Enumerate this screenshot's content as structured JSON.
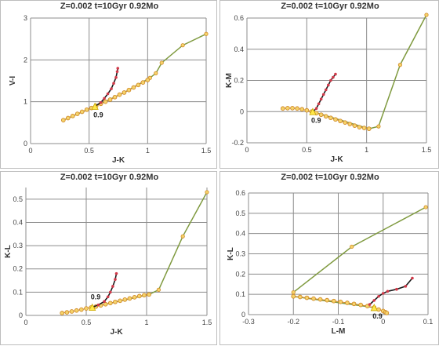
{
  "colors": {
    "grid": "#8c8c8c",
    "axis": "#8c8c8c",
    "green_line": "#7f9a3f",
    "marker_fill": "#f5d36a",
    "marker_stroke": "#d08a2a",
    "red_marker": "#d23a4a",
    "dark_line": "#1a1a1a",
    "triangle": "#ffe84a"
  },
  "chart_data": [
    {
      "type": "line",
      "title": "Z=0.002  t=10Gyr 0.92Mo",
      "xlabel": "J-K",
      "ylabel": "V-I",
      "xlim": [
        0,
        1.5
      ],
      "ylim": [
        0,
        3
      ],
      "xticks": [
        "0",
        "0.5",
        "1",
        "1.5"
      ],
      "yticks": [
        "0",
        "1",
        "2",
        "3"
      ],
      "grid": true,
      "annotation": "0.9",
      "annotation_point": [
        0.55,
        0.89
      ],
      "series": [
        {
          "style": "green-line",
          "x": [
            0.28,
            0.52,
            0.8,
            1.02,
            1.07,
            1.12,
            1.3,
            1.5
          ],
          "y": [
            0.56,
            0.85,
            1.22,
            1.57,
            1.68,
            1.93,
            2.35,
            2.62
          ]
        },
        {
          "style": "orange-circles",
          "x": [
            0.28,
            0.32,
            0.36,
            0.4,
            0.44,
            0.48,
            0.52,
            0.56,
            0.6,
            0.64,
            0.68,
            0.72,
            0.76,
            0.8,
            0.84,
            0.88,
            0.92,
            0.96,
            1.0
          ],
          "y": [
            0.56,
            0.61,
            0.66,
            0.71,
            0.76,
            0.81,
            0.85,
            0.9,
            0.95,
            1.0,
            1.05,
            1.11,
            1.17,
            1.22,
            1.28,
            1.34,
            1.4,
            1.46,
            1.52
          ]
        },
        {
          "style": "red-dark-line",
          "x": [
            0.55,
            0.6,
            0.63,
            0.66,
            0.69,
            0.71,
            0.73,
            0.74,
            0.745
          ],
          "y": [
            0.89,
            0.98,
            1.08,
            1.19,
            1.31,
            1.44,
            1.58,
            1.72,
            1.8
          ]
        }
      ]
    },
    {
      "type": "line",
      "title": "Z=0.002  t=10Gyr 0.92Mo",
      "xlabel": "J-K",
      "ylabel": "K-M",
      "xlim": [
        0,
        1.5
      ],
      "ylim": [
        -0.2,
        0.6
      ],
      "xticks": [
        "0",
        "0.5",
        "1",
        "1.5"
      ],
      "yticks": [
        "-0.2",
        "0",
        "0.2",
        "0.4",
        "0.6"
      ],
      "grid": true,
      "annotation": "0.9",
      "annotation_point": [
        0.55,
        0.0
      ],
      "series": [
        {
          "style": "green-line",
          "x": [
            0.55,
            1.02,
            1.1,
            1.28,
            1.5
          ],
          "y": [
            0.0,
            -0.11,
            -0.095,
            0.3,
            0.62
          ]
        },
        {
          "style": "orange-circles",
          "x": [
            0.3,
            0.34,
            0.38,
            0.42,
            0.46,
            0.5,
            0.54,
            0.58,
            0.62,
            0.66,
            0.7,
            0.74,
            0.78,
            0.82,
            0.86,
            0.9,
            0.94,
            0.98,
            1.02
          ],
          "y": [
            0.02,
            0.022,
            0.022,
            0.02,
            0.015,
            0.008,
            0.0,
            -0.01,
            -0.02,
            -0.03,
            -0.04,
            -0.05,
            -0.06,
            -0.07,
            -0.08,
            -0.09,
            -0.1,
            -0.105,
            -0.11
          ]
        },
        {
          "style": "red-dark-line",
          "x": [
            0.55,
            0.58,
            0.6,
            0.62,
            0.64,
            0.66,
            0.68,
            0.7,
            0.72,
            0.74
          ],
          "y": [
            0.0,
            0.02,
            0.05,
            0.08,
            0.11,
            0.14,
            0.17,
            0.2,
            0.22,
            0.24
          ]
        }
      ]
    },
    {
      "type": "line",
      "title": "Z=0.002  t=10Gyr 0.92Mo",
      "xlabel": "J-K",
      "ylabel": "K-L",
      "xlim": [
        0,
        1.5
      ],
      "ylim": [
        0,
        0.55
      ],
      "xticks": [
        "0",
        "0.5",
        "1",
        "1.5"
      ],
      "yticks": [
        "0",
        "0.1",
        "0.2",
        "0.3",
        "0.4",
        "0.5"
      ],
      "grid": true,
      "annotation": "0.9",
      "annotation_point": [
        0.55,
        0.035
      ],
      "series": [
        {
          "style": "green-line",
          "x": [
            0.55,
            1.02,
            1.1,
            1.3,
            1.5
          ],
          "y": [
            0.035,
            0.09,
            0.11,
            0.34,
            0.53
          ]
        },
        {
          "style": "orange-circles",
          "x": [
            0.3,
            0.34,
            0.38,
            0.42,
            0.46,
            0.5,
            0.54,
            0.58,
            0.62,
            0.66,
            0.7,
            0.74,
            0.78,
            0.82,
            0.86,
            0.9,
            0.94,
            0.98,
            1.02
          ],
          "y": [
            0.01,
            0.013,
            0.017,
            0.021,
            0.025,
            0.03,
            0.034,
            0.038,
            0.043,
            0.048,
            0.053,
            0.058,
            0.063,
            0.068,
            0.073,
            0.078,
            0.083,
            0.087,
            0.09
          ]
        },
        {
          "style": "red-dark-line",
          "x": [
            0.55,
            0.6,
            0.65,
            0.68,
            0.7,
            0.72,
            0.74,
            0.75
          ],
          "y": [
            0.035,
            0.045,
            0.06,
            0.08,
            0.1,
            0.125,
            0.155,
            0.18
          ]
        }
      ]
    },
    {
      "type": "line",
      "title": "Z=0.002  t=10Gyr 0.92Mo",
      "xlabel": "L-M",
      "ylabel": "K-L",
      "xlim": [
        -0.3,
        0.1
      ],
      "ylim": [
        0,
        0.6
      ],
      "xticks": [
        "-0.3",
        "-0.2",
        "-0.1",
        "0",
        "0.1"
      ],
      "yticks": [
        "0",
        "0.1",
        "0.2",
        "0.3",
        "0.4",
        "0.5",
        "0.6"
      ],
      "grid": true,
      "annotation": "0.9",
      "annotation_point": [
        -0.02,
        0.035
      ],
      "series": [
        {
          "style": "green-line",
          "x": [
            -0.02,
            -0.2,
            -0.2,
            -0.07,
            0.095
          ],
          "y": [
            0.035,
            0.09,
            0.11,
            0.335,
            0.53
          ]
        },
        {
          "style": "orange-circles",
          "x": [
            -0.2,
            -0.185,
            -0.17,
            -0.155,
            -0.14,
            -0.125,
            -0.11,
            -0.095,
            -0.08,
            -0.065,
            -0.05,
            -0.035,
            -0.02,
            -0.01,
            0.0,
            0.005,
            0.008
          ],
          "y": [
            0.09,
            0.087,
            0.083,
            0.079,
            0.075,
            0.071,
            0.067,
            0.063,
            0.058,
            0.053,
            0.048,
            0.042,
            0.035,
            0.025,
            0.018,
            0.012,
            0.008
          ]
        },
        {
          "style": "red-dark-line",
          "x": [
            -0.03,
            -0.02,
            -0.01,
            0.0,
            0.01,
            0.03,
            0.05,
            0.065
          ],
          "y": [
            0.05,
            0.07,
            0.09,
            0.105,
            0.115,
            0.125,
            0.14,
            0.18
          ]
        }
      ]
    }
  ]
}
